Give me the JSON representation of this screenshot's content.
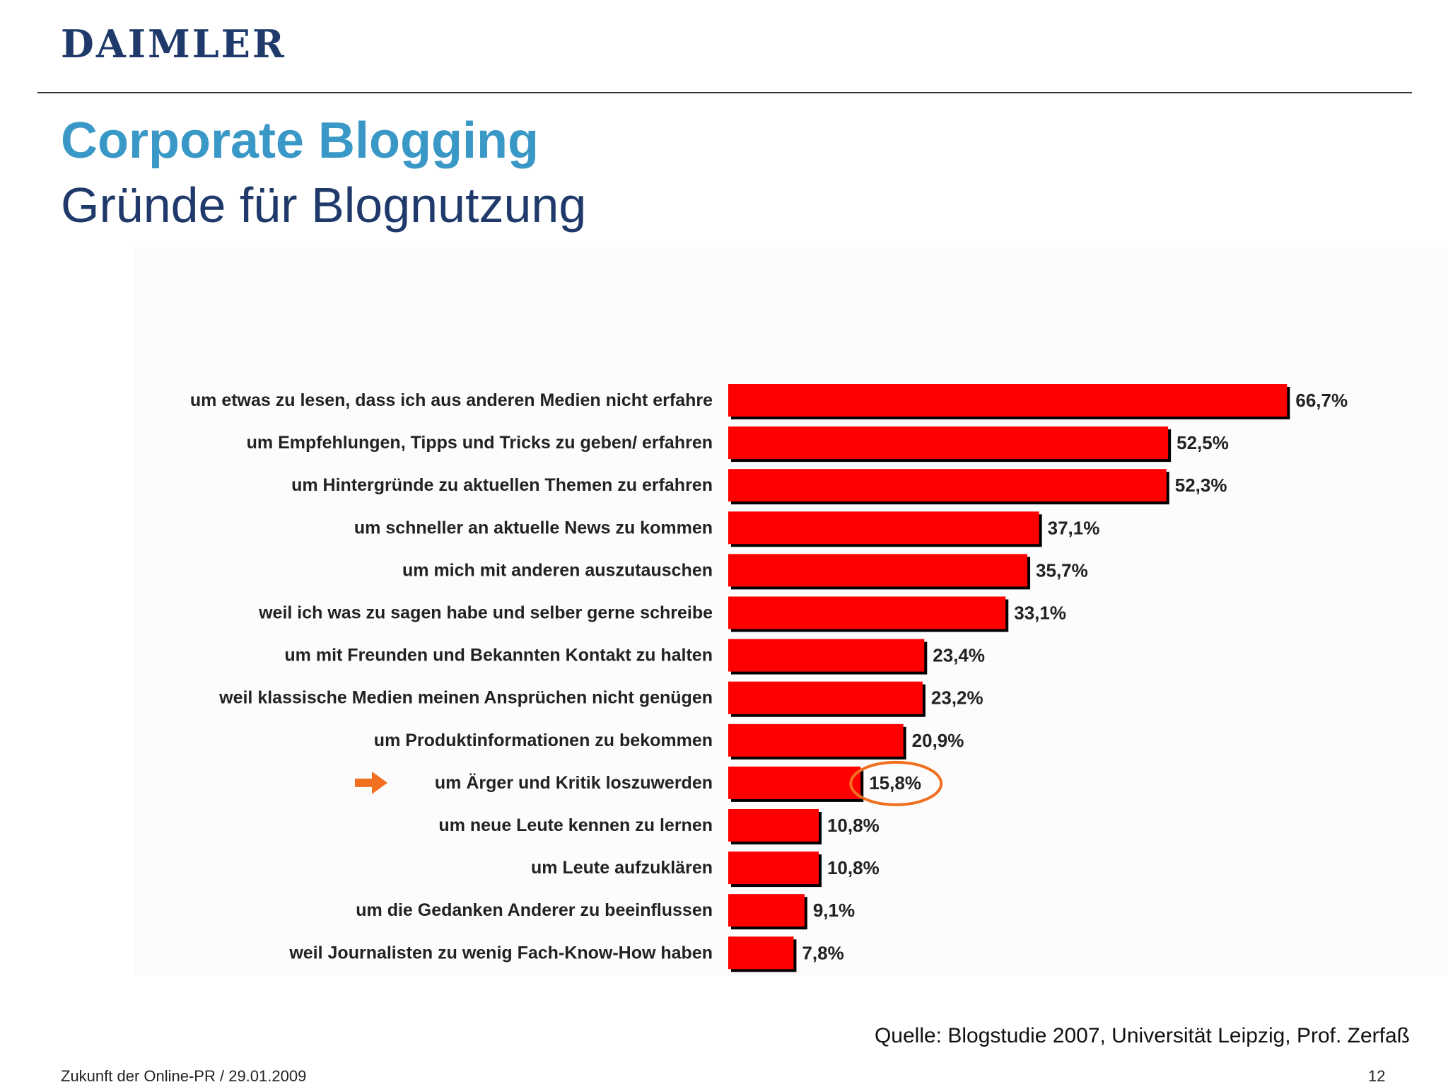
{
  "header": {
    "logo_text": "DAIMLER"
  },
  "title": "Corporate Blogging",
  "subtitle": "Gründe für Blognutzung",
  "chart_data": {
    "type": "bar",
    "orientation": "horizontal",
    "categories": [
      "um etwas zu lesen, dass ich aus anderen Medien nicht erfahre",
      "um Empfehlungen, Tipps und Tricks zu geben/ erfahren",
      "um Hintergründe zu aktuellen Themen zu erfahren",
      "um schneller an aktuelle News zu kommen",
      "um mich mit anderen auszutauschen",
      "weil ich was zu sagen habe und selber gerne schreibe",
      "um mit Freunden und Bekannten Kontakt zu halten",
      "weil klassische Medien meinen Ansprüchen nicht genügen",
      "um Produktinformationen zu bekommen",
      "um Ärger und Kritik loszuwerden",
      "um neue Leute kennen zu lernen",
      "um Leute aufzuklären",
      "um die Gedanken Anderer zu beeinflussen",
      "weil Journalisten zu wenig Fach-Know-How haben"
    ],
    "values": [
      66.7,
      52.5,
      52.3,
      37.1,
      35.7,
      33.1,
      23.4,
      23.2,
      20.9,
      15.8,
      10.8,
      10.8,
      9.1,
      7.8
    ],
    "value_labels": [
      "66,7%",
      "52,5%",
      "52,3%",
      "37,1%",
      "35,7%",
      "33,1%",
      "23,4%",
      "23,2%",
      "20,9%",
      "15,8%",
      "10,8%",
      "10,8%",
      "9,1%",
      "7,8%"
    ],
    "highlighted_index": 9,
    "bar_color": "#ff0000",
    "highlight_color": "#f07020",
    "grid": false
  },
  "source": "Quelle: Blogstudie 2007, Universität Leipzig, Prof. Zerfaß",
  "footer": {
    "left": "Zukunft der Online-PR / 29.01.2009",
    "page": "12"
  }
}
